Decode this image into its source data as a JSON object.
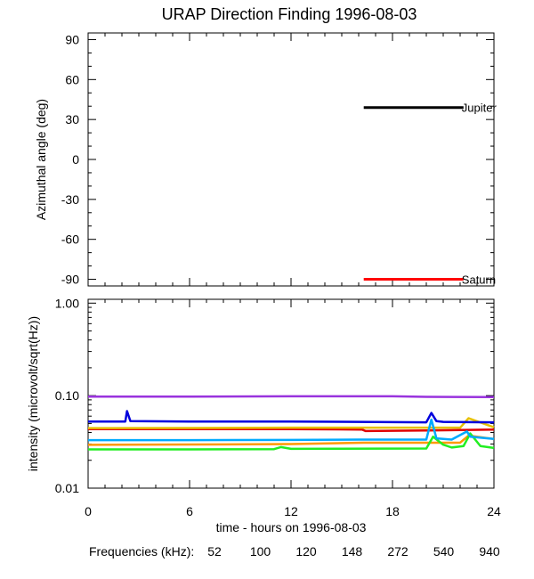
{
  "chart_data": [
    {
      "type": "line",
      "panel": "direction",
      "title": "URAP Direction Finding  1996-08-03",
      "ylabel": "Azimuthal angle (deg)",
      "ylim": [
        -95,
        95
      ],
      "xlim": [
        0,
        24
      ],
      "yticks": [
        "90",
        "60",
        "30",
        "0",
        "-30",
        "-60",
        "-90"
      ],
      "series": [
        {
          "name": "Jupiter",
          "color": "#000000",
          "x": [
            16.3,
            22.2
          ],
          "y": [
            39,
            39
          ]
        },
        {
          "name": "Saturn",
          "color": "#ff0000",
          "x": [
            16.3,
            22.2
          ],
          "y": [
            -90,
            -90
          ]
        }
      ]
    },
    {
      "type": "line",
      "panel": "intensity",
      "ylabel": "intensity (microvolt/sqrt(Hz))",
      "xlabel": "time - hours on 1996-08-03",
      "yscale": "log",
      "ylim": [
        0.01,
        1.1
      ],
      "xlim": [
        0,
        24
      ],
      "yticks": [
        "1.00",
        "0.10",
        "0.01"
      ],
      "xticks": [
        "0",
        "6",
        "12",
        "18",
        "24"
      ],
      "series": [
        {
          "name": "52",
          "color": "#e00000",
          "x": [
            0,
            6,
            12,
            16.2,
            16.4,
            20,
            24
          ],
          "y": [
            0.0435,
            0.0435,
            0.0435,
            0.043,
            0.0415,
            0.042,
            0.043
          ]
        },
        {
          "name": "100",
          "color": "#ff9900",
          "x": [
            0,
            6,
            12,
            16.3,
            20.4,
            21,
            22,
            22.5,
            24
          ],
          "y": [
            0.0294,
            0.0296,
            0.03,
            0.031,
            0.031,
            0.031,
            0.031,
            0.037,
            0.034
          ]
        },
        {
          "name": "120",
          "color": "#e6c000",
          "x": [
            0,
            6,
            12,
            18,
            22,
            22.5,
            24
          ],
          "y": [
            0.0445,
            0.0447,
            0.045,
            0.045,
            0.045,
            0.057,
            0.0455
          ]
        },
        {
          "name": "148",
          "color": "#22ee22",
          "x": [
            0,
            6,
            11,
            11.4,
            12,
            20,
            20.4,
            21,
            21.5,
            22.2,
            22.6,
            23.2,
            24
          ],
          "y": [
            0.0262,
            0.0262,
            0.0264,
            0.0278,
            0.0266,
            0.0268,
            0.036,
            0.0295,
            0.0275,
            0.0285,
            0.039,
            0.0285,
            0.0272
          ]
        },
        {
          "name": "272",
          "color": "#00aaff",
          "x": [
            0,
            6,
            12,
            16,
            20,
            20.3,
            20.6,
            21.5,
            22.4,
            22.6,
            24
          ],
          "y": [
            0.033,
            0.033,
            0.0332,
            0.0335,
            0.0335,
            0.055,
            0.0345,
            0.0335,
            0.041,
            0.036,
            0.034
          ]
        },
        {
          "name": "540",
          "color": "#0000dd",
          "x": [
            0,
            2.2,
            2.3,
            2.5,
            6,
            12,
            16,
            20,
            20.3,
            20.6,
            21,
            24
          ],
          "y": [
            0.0525,
            0.0525,
            0.068,
            0.053,
            0.0525,
            0.0525,
            0.052,
            0.0515,
            0.065,
            0.053,
            0.052,
            0.0515
          ]
        },
        {
          "name": "940",
          "color": "#9933dd",
          "x": [
            0,
            6,
            12,
            18,
            20,
            24
          ],
          "y": [
            0.0975,
            0.0975,
            0.0985,
            0.0985,
            0.097,
            0.0965
          ]
        }
      ]
    }
  ],
  "frequencies_label": "Frequencies (kHz):"
}
